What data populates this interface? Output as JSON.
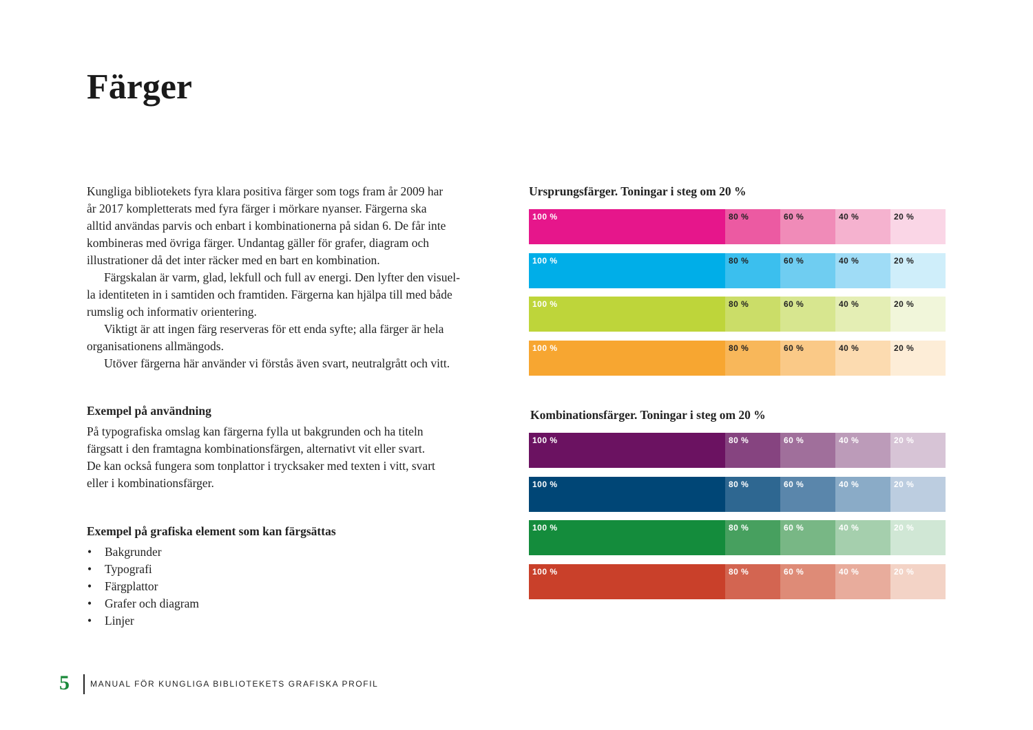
{
  "header": {
    "title": "Färger"
  },
  "intro": {
    "paragraphs": [
      [
        "Kungliga bibliotekets fyra klara positiva färger som togs fram år 2009 har",
        "år 2017 kompletterats med fyra färger i mörkare nyanser. Färgerna ska",
        "alltid användas parvis och enbart i kombinationerna på sidan 6. De får inte",
        "kombineras med övriga färger. Undantag gäller för grafer, diagram och",
        "illustrationer då det inter räcker med en bart en kombination."
      ],
      [
        "Färgskalan är varm, glad, lekfull och full av energi. Den lyfter den visuel-",
        "la identiteten in i samtiden och framtiden. Färgerna kan hjälpa till med både",
        "rumslig och informativ orientering."
      ],
      [
        "Viktigt är att ingen färg reserveras för ett enda syfte; alla färger är hela",
        "organisationens allmängods."
      ],
      [
        "Utöver färgerna här använder vi förstås även svart, neutralgrått och vitt."
      ]
    ]
  },
  "usage": {
    "heading": "Exempel på användning",
    "lines": [
      "På typografiska omslag kan färgerna fylla ut bakgrunden och ha titeln",
      "färgsatt i den framtagna kombinationsfärgen, alternativt vit eller svart.",
      "De kan också fungera som tonplattor i trycksaker med texten i vitt, svart",
      "eller i kombinationsfärger."
    ]
  },
  "elements": {
    "heading": "Exempel på grafiska element som kan färgsättas",
    "items": [
      "Bakgrunder",
      "Typografi",
      "Färgplattor",
      "Grafer och diagram",
      "Linjer"
    ]
  },
  "swatches": [
    {
      "heading": "Ursprungsfärger. Toningar i steg om 20 %",
      "rows": [
        {
          "cells": [
            {
              "label": "100 %",
              "color": "#e6168b",
              "ink": "#ffffff"
            },
            {
              "label": "80 %",
              "color": "#ec5aa2",
              "ink": "#222222"
            },
            {
              "label": "60 %",
              "color": "#f08bb8",
              "ink": "#222222"
            },
            {
              "label": "40 %",
              "color": "#f5b2cf",
              "ink": "#222222"
            },
            {
              "label": "20 %",
              "color": "#fad6e6",
              "ink": "#222222"
            }
          ]
        },
        {
          "cells": [
            {
              "label": "100 %",
              "color": "#00aee8",
              "ink": "#ffffff"
            },
            {
              "label": "80 %",
              "color": "#3bbfee",
              "ink": "#222222"
            },
            {
              "label": "60 %",
              "color": "#6fcdf1",
              "ink": "#222222"
            },
            {
              "label": "40 %",
              "color": "#9fdcf6",
              "ink": "#222222"
            },
            {
              "label": "20 %",
              "color": "#cfeefa",
              "ink": "#222222"
            }
          ]
        },
        {
          "cells": [
            {
              "label": "100 %",
              "color": "#bed53a",
              "ink": "#ffffff"
            },
            {
              "label": "80 %",
              "color": "#cbdd68",
              "ink": "#222222"
            },
            {
              "label": "60 %",
              "color": "#d7e68f",
              "ink": "#222222"
            },
            {
              "label": "40 %",
              "color": "#e4eeb4",
              "ink": "#222222"
            },
            {
              "label": "20 %",
              "color": "#f1f6da",
              "ink": "#222222"
            }
          ]
        },
        {
          "cells": [
            {
              "label": "100 %",
              "color": "#f7a631",
              "ink": "#ffffff"
            },
            {
              "label": "80 %",
              "color": "#f8b75a",
              "ink": "#222222"
            },
            {
              "label": "60 %",
              "color": "#fac987",
              "ink": "#222222"
            },
            {
              "label": "40 %",
              "color": "#fcdbb0",
              "ink": "#222222"
            },
            {
              "label": "20 %",
              "color": "#fdedd7",
              "ink": "#222222"
            }
          ]
        }
      ]
    },
    {
      "heading": "Kombinationsfärger. Toningar i steg om 20 %",
      "rows": [
        {
          "cells": [
            {
              "label": "100 %",
              "color": "#6b1261",
              "ink": "#ffffff"
            },
            {
              "label": "80 %",
              "color": "#864480",
              "ink": "#ffffff"
            },
            {
              "label": "60 %",
              "color": "#a06f9b",
              "ink": "#ffffff"
            },
            {
              "label": "40 %",
              "color": "#bc9bb9",
              "ink": "#ffffff"
            },
            {
              "label": "20 %",
              "color": "#d7c4d6",
              "ink": "#ffffff"
            }
          ]
        },
        {
          "cells": [
            {
              "label": "100 %",
              "color": "#004676",
              "ink": "#ffffff"
            },
            {
              "label": "80 %",
              "color": "#2e6791",
              "ink": "#ffffff"
            },
            {
              "label": "60 %",
              "color": "#5a86ab",
              "ink": "#ffffff"
            },
            {
              "label": "40 %",
              "color": "#8aabc7",
              "ink": "#ffffff"
            },
            {
              "label": "20 %",
              "color": "#bccde0",
              "ink": "#ffffff"
            }
          ]
        },
        {
          "cells": [
            {
              "label": "100 %",
              "color": "#148c3c",
              "ink": "#ffffff"
            },
            {
              "label": "80 %",
              "color": "#47a05f",
              "ink": "#ffffff"
            },
            {
              "label": "60 %",
              "color": "#78b785",
              "ink": "#ffffff"
            },
            {
              "label": "40 %",
              "color": "#a5cfad",
              "ink": "#ffffff"
            },
            {
              "label": "20 %",
              "color": "#d0e7d5",
              "ink": "#ffffff"
            }
          ]
        },
        {
          "cells": [
            {
              "label": "100 %",
              "color": "#c9402a",
              "ink": "#ffffff"
            },
            {
              "label": "80 %",
              "color": "#d36551",
              "ink": "#ffffff"
            },
            {
              "label": "60 %",
              "color": "#de8b77",
              "ink": "#ffffff"
            },
            {
              "label": "40 %",
              "color": "#e8ac9c",
              "ink": "#ffffff"
            },
            {
              "label": "20 %",
              "color": "#f3d3c6",
              "ink": "#ffffff"
            }
          ]
        }
      ]
    }
  ],
  "footer": {
    "page": "5",
    "text": "MANUAL FÖR KUNGLIGA BIBLIOTEKETS GRAFISKA PROFIL"
  }
}
